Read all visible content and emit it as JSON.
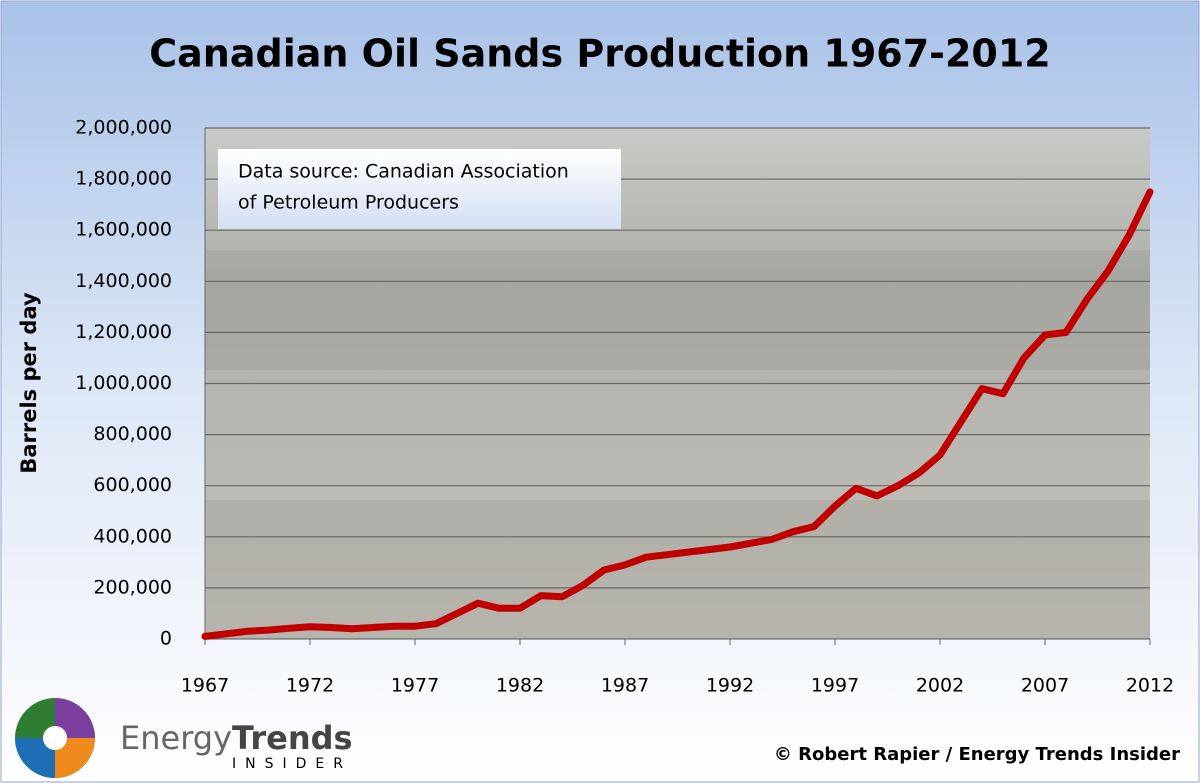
{
  "chart_data": {
    "type": "line",
    "title": "Canadian Oil Sands Production 1967-2012",
    "y_label": "Barrels per day",
    "annotation": [
      "Data source: Canadian Association",
      "of Petroleum  Producers"
    ],
    "logo": [
      "Energy",
      "Trends",
      "INSIDER"
    ],
    "credit": "© Robert Rapier / Energy Trends Insider",
    "x": [
      1967,
      1968,
      1969,
      1970,
      1971,
      1972,
      1973,
      1974,
      1975,
      1976,
      1977,
      1978,
      1979,
      1980,
      1981,
      1982,
      1983,
      1984,
      1985,
      1986,
      1987,
      1988,
      1989,
      1990,
      1991,
      1992,
      1993,
      1994,
      1995,
      1996,
      1997,
      1998,
      1999,
      2000,
      2001,
      2002,
      2003,
      2004,
      2005,
      2006,
      2007,
      2008,
      2009,
      2010,
      2011,
      2012
    ],
    "values": [
      10000,
      20000,
      30000,
      35000,
      42000,
      48000,
      45000,
      40000,
      45000,
      50000,
      50000,
      60000,
      100000,
      140000,
      120000,
      120000,
      170000,
      165000,
      210000,
      270000,
      290000,
      320000,
      330000,
      340000,
      350000,
      360000,
      375000,
      390000,
      420000,
      440000,
      520000,
      590000,
      560000,
      600000,
      650000,
      720000,
      850000,
      980000,
      960000,
      1100000,
      1190000,
      1200000,
      1330000,
      1440000,
      1580000,
      1750000
    ],
    "color": "#c00000",
    "xlim": [
      1967,
      2012
    ],
    "xticks": [
      1967,
      1972,
      1977,
      1982,
      1987,
      1992,
      1997,
      2002,
      2007,
      2012
    ],
    "ylim": [
      0,
      2000000
    ],
    "yticks": [
      0,
      {
        "value": 200000,
        "label": "200,000"
      },
      {
        "value": 400000,
        "label": "400,000"
      },
      {
        "value": 600000,
        "label": "600,000"
      },
      {
        "value": 800000,
        "label": "800,000"
      },
      {
        "value": 1000000,
        "label": "1,000,000"
      },
      {
        "value": 1200000,
        "label": "1,200,000"
      },
      {
        "value": 1400000,
        "label": "1,400,000"
      },
      {
        "value": 1600000,
        "label": "1,600,000"
      },
      {
        "value": 1800000,
        "label": "1,800,000"
      },
      {
        "value": 2000000,
        "label": "2,000,000"
      }
    ],
    "grid": true
  }
}
